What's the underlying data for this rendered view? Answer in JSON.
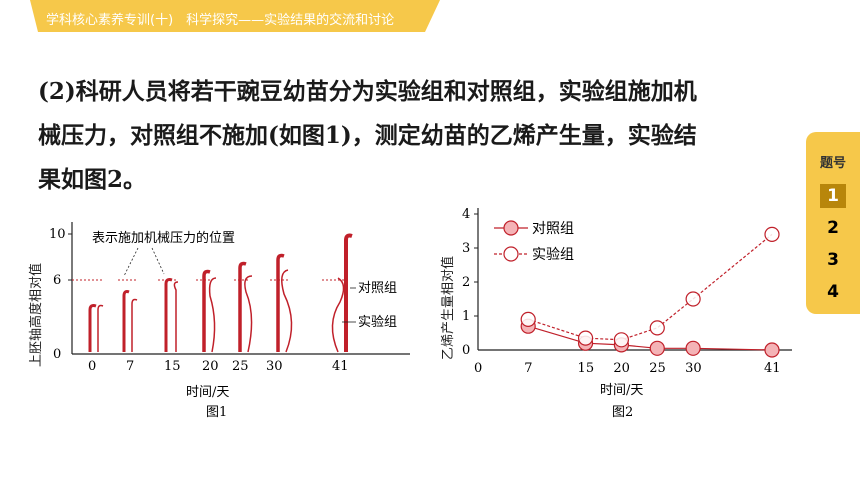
{
  "header": {
    "title": "学科核心素养专训(十)　科学探究——实验结果的交流和讨论",
    "accent_color": "#f6c84a"
  },
  "question": {
    "lines": [
      "(2)科研人员将若干豌豆幼苗分为实验组和对照组，实验组施加机",
      "械压力，对照组不施加(如图1)，测定幼苗的乙烯产生量，实验结",
      "果如图2。"
    ]
  },
  "side_nav": {
    "header": "题号",
    "items": [
      "1",
      "2",
      "3",
      "4"
    ],
    "active": "1"
  },
  "figure1": {
    "caption": "图1",
    "ylabel": "上胚轴高度相对值",
    "xlabel": "时间/天",
    "yticks": [
      "0",
      "6",
      "10"
    ],
    "xticks": [
      "0",
      "7",
      "15",
      "20",
      "25",
      "30",
      "41"
    ],
    "annotation_pressure": "表示施加机械压力的位置",
    "label_control": "对照组",
    "label_experiment": "实验组",
    "stem_color": "#c0202a"
  },
  "figure2": {
    "caption": "图2",
    "ylabel": "乙烯产生量相对值",
    "xlabel": "时间/天",
    "yticks": [
      "0",
      "1",
      "2",
      "3",
      "4"
    ],
    "xticks": [
      "0",
      "7",
      "15",
      "20",
      "25",
      "30",
      "41"
    ],
    "series_colors": {
      "control": "#c0202a",
      "experiment": "#c0202a"
    }
  },
  "chart_data": {
    "type": "line",
    "title": "",
    "xlabel": "时间/天",
    "ylabel": "乙烯产生量相对值",
    "x": [
      7,
      15,
      20,
      25,
      30,
      41
    ],
    "xlim": [
      0,
      41
    ],
    "ylim": [
      0,
      4
    ],
    "grid": false,
    "legend_position": "top-left",
    "series": [
      {
        "name": "对照组",
        "values": [
          0.7,
          0.2,
          0.15,
          0.05,
          0.05,
          0.0
        ]
      },
      {
        "name": "实验组",
        "values": [
          0.9,
          0.35,
          0.3,
          0.65,
          1.5,
          3.4
        ]
      }
    ]
  }
}
